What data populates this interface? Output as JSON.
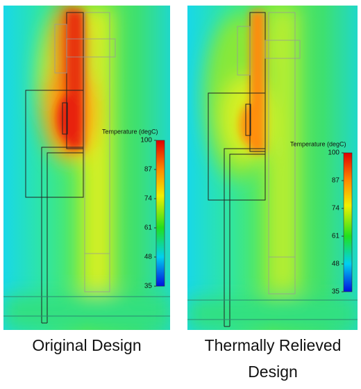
{
  "panels": [
    {
      "caption": "Original Design",
      "colorbar": {
        "title": "Temperature (degC)",
        "ticks": [
          100,
          87,
          74,
          61,
          48,
          35
        ]
      }
    },
    {
      "caption": "Thermally Relieved Design",
      "colorbar": {
        "title": "Temperature (degC)",
        "ticks": [
          100,
          87,
          74,
          61,
          48,
          35
        ]
      }
    }
  ]
}
